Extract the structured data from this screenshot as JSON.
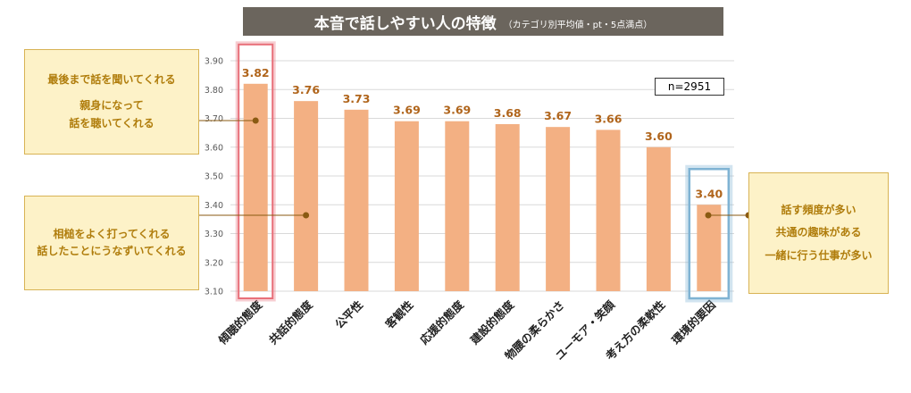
{
  "title": {
    "main": "本音で話しやすい人の特徴",
    "sub": "（カテゴリ別平均値・pt・5点満点）"
  },
  "sample_size": "n=2951",
  "callouts": {
    "left_top": {
      "lines": [
        "最後まで話を聞いてくれる",
        "親身になって",
        "話を聴いてくれる"
      ]
    },
    "left_bottom": {
      "lines": [
        "相槌をよく打ってくれる",
        "話したことにうなずいてくれる"
      ]
    },
    "right": {
      "lines": [
        "話す頻度が多い",
        "共通の趣味がある",
        "一緒に行う仕事が多い"
      ]
    }
  },
  "colors": {
    "bar": "#f3b083",
    "label": "#b0651c",
    "highlight_red": "#e8707a",
    "highlight_blue": "#7fb3d3",
    "connector": "#8a5a12"
  },
  "chart_data": {
    "type": "bar",
    "title": "本音で話しやすい人の特徴",
    "subtitle": "（カテゴリ別平均値・pt・5点満点）",
    "categories": [
      "傾聴的態度",
      "共話的態度",
      "公平性",
      "客観性",
      "応援的態度",
      "建設的態度",
      "物腰の柔らかさ",
      "ユーモア・笑顔",
      "考え方の柔軟性",
      "環境的要因"
    ],
    "values": [
      3.82,
      3.76,
      3.73,
      3.69,
      3.69,
      3.68,
      3.67,
      3.66,
      3.6,
      3.4
    ],
    "value_labels": [
      "3.82",
      "3.76",
      "3.73",
      "3.69",
      "3.69",
      "3.68",
      "3.67",
      "3.66",
      "3.60",
      "3.40"
    ],
    "ylim": [
      3.1,
      3.9
    ],
    "yticks": [
      "3.10",
      "3.20",
      "3.30",
      "3.40",
      "3.50",
      "3.60",
      "3.70",
      "3.80",
      "3.90"
    ],
    "grid": true,
    "xlabel": "",
    "ylabel": ""
  }
}
